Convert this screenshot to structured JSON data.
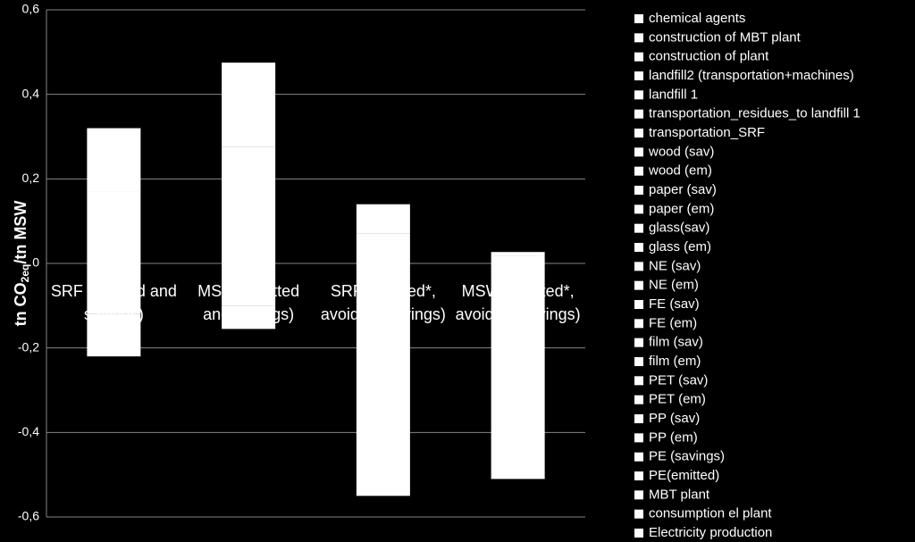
{
  "chart_data": {
    "type": "stacked-bar",
    "y_label": [
      "tn CO",
      "2eq",
      "/tn MSW"
    ],
    "categories": [
      "SRF (emitted and savings)",
      "MSW (emitted and savings)",
      "SRF (emitted*, avoided, savings)",
      "MSW (emitted*, avoided, savings)"
    ],
    "ylim": [
      -0.6,
      0.6
    ],
    "yticks": [
      {
        "value": -0.6,
        "label": "-0,6"
      },
      {
        "value": -0.4,
        "label": "-0,4"
      },
      {
        "value": -0.2,
        "label": "-0,2"
      },
      0,
      {
        "value": 0.2,
        "label": "0,2"
      },
      {
        "value": 0.4,
        "label": "0,4"
      },
      {
        "value": 0.6,
        "label": "0,6"
      }
    ],
    "grid": true,
    "legend": "right",
    "series": [
      {
        "name": "chemical agents",
        "color": "#ffffff",
        "values": [
          0,
          0,
          0,
          0
        ]
      },
      {
        "name": "construction of MBT plant",
        "color": "#ffffff",
        "values": [
          0,
          0,
          0,
          0
        ]
      },
      {
        "name": "construction of plant",
        "color": "#ffffff",
        "values": [
          0,
          0,
          0,
          0
        ]
      },
      {
        "name": "landfill2 (transportation+machines)",
        "color": "#ffffff",
        "values": [
          0,
          0,
          0,
          0
        ]
      },
      {
        "name": "landfill 1",
        "color": "#ffffff",
        "values": [
          0,
          0,
          0,
          0
        ]
      },
      {
        "name": "transportation_residues_to landfill 1",
        "color": "#ffffff",
        "values": [
          0,
          0,
          0,
          0
        ]
      },
      {
        "name": "transportation_SRF",
        "color": "#ffffff",
        "values": [
          0,
          0,
          0,
          0
        ]
      },
      {
        "name": "wood (sav)",
        "color": "#ffffff",
        "values": [
          0,
          0,
          0,
          0
        ]
      },
      {
        "name": "wood (em)",
        "color": "#ffffff",
        "values": [
          0,
          0,
          0,
          0
        ]
      },
      {
        "name": "paper (sav)",
        "color": "#ffffff",
        "values": [
          0,
          0,
          0,
          0
        ]
      },
      {
        "name": "paper (em)",
        "color": "#ffffff",
        "values": [
          0,
          0,
          0,
          0
        ]
      },
      {
        "name": "glass(sav)",
        "color": "#ffffff",
        "values": [
          0,
          0,
          0,
          0
        ]
      },
      {
        "name": "glass (em)",
        "color": "#ffffff",
        "values": [
          0,
          0,
          0,
          0
        ]
      },
      {
        "name": "NE (sav)",
        "color": "#ffffff",
        "values": [
          0,
          0,
          0,
          0
        ]
      },
      {
        "name": "NE (em)",
        "color": "#ffffff",
        "values": [
          0,
          0,
          0,
          0
        ]
      },
      {
        "name": "FE (sav)",
        "color": "#ffffff",
        "values": [
          0,
          0,
          0,
          0
        ]
      },
      {
        "name": "FE (em)",
        "color": "#ffffff",
        "values": [
          0,
          0,
          0,
          0
        ]
      },
      {
        "name": "film (sav)",
        "color": "#ffffff",
        "values": [
          0,
          0,
          0,
          0
        ]
      },
      {
        "name": "film (em)",
        "color": "#ffffff",
        "values": [
          0,
          0,
          0,
          0
        ]
      },
      {
        "name": "PET (sav)",
        "color": "#ffffff",
        "values": [
          0,
          0,
          0,
          0
        ]
      },
      {
        "name": "PET (em)",
        "color": "#ffffff",
        "values": [
          0,
          0,
          0,
          0
        ]
      },
      {
        "name": "PP (sav)",
        "color": "#ffffff",
        "values": [
          0,
          0,
          0,
          0
        ]
      },
      {
        "name": "PP (em)",
        "color": "#ffffff",
        "values": [
          0,
          0,
          0,
          0
        ]
      },
      {
        "name": "PE (savings)",
        "color": "#ffffff",
        "values": [
          -0.12,
          -0.1,
          -0.3,
          -0.3
        ]
      },
      {
        "name": "PE(emitted)",
        "color": "#ffffff",
        "values": [
          0.17,
          0.275,
          0.07,
          0.017
        ]
      },
      {
        "name": "MBT plant",
        "color": "#ffffff",
        "values": [
          0.15,
          0.2,
          0.07,
          0.01
        ]
      },
      {
        "name": "consumption el plant",
        "color": "#ffffff",
        "values": [
          0,
          0,
          0,
          0
        ]
      },
      {
        "name": "Electricity production",
        "color": "#ffffff",
        "values": [
          -0.1,
          -0.055,
          -0.25,
          -0.21
        ]
      }
    ]
  }
}
